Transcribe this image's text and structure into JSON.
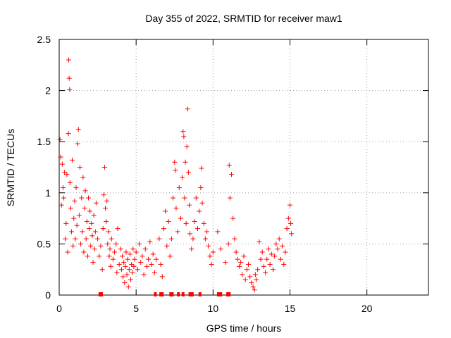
{
  "chart_data": {
    "type": "scatter",
    "title": "Day 355 of 2022, SRMTID for receiver maw1",
    "xlabel": "GPS time / hours",
    "ylabel": "SRMTID / TECUs",
    "xlim": [
      0,
      24
    ],
    "ylim": [
      0,
      2.5
    ],
    "xticks": [
      0,
      5,
      10,
      15,
      20
    ],
    "yticks": [
      0,
      0.5,
      1,
      1.5,
      2,
      2.5
    ],
    "xtick_labels": [
      "0",
      "5",
      "10",
      "15",
      "20"
    ],
    "ytick_labels": [
      "0",
      "0.5",
      "1",
      "1.5",
      "2",
      "2.5"
    ],
    "grid": true,
    "marker": "+",
    "series": [
      {
        "name": "SRMTID",
        "color": "#ff0000",
        "points": [
          [
            0.05,
            1.52
          ],
          [
            0.1,
            1.35
          ],
          [
            0.15,
            0.88
          ],
          [
            0.2,
            1.28
          ],
          [
            0.25,
            1.05
          ],
          [
            0.3,
            0.95
          ],
          [
            0.35,
            1.2
          ],
          [
            0.4,
            0.55
          ],
          [
            0.45,
            0.7
          ],
          [
            0.5,
            1.18
          ],
          [
            0.55,
            0.42
          ],
          [
            0.6,
            1.58
          ],
          [
            0.62,
            2.3
          ],
          [
            0.65,
            2.12
          ],
          [
            0.68,
            2.01
          ],
          [
            0.7,
            1.1
          ],
          [
            0.75,
            0.85
          ],
          [
            0.8,
            0.62
          ],
          [
            0.85,
            1.32
          ],
          [
            0.9,
            0.48
          ],
          [
            0.95,
            0.75
          ],
          [
            1.0,
            0.92
          ],
          [
            1.05,
            0.55
          ],
          [
            1.1,
            1.05
          ],
          [
            1.15,
            0.68
          ],
          [
            1.2,
            1.48
          ],
          [
            1.25,
            1.62
          ],
          [
            1.3,
            0.78
          ],
          [
            1.35,
            1.25
          ],
          [
            1.4,
            0.5
          ],
          [
            1.45,
            0.95
          ],
          [
            1.5,
            0.62
          ],
          [
            1.55,
            1.15
          ],
          [
            1.6,
            0.42
          ],
          [
            1.65,
            0.85
          ],
          [
            1.7,
            1.02
          ],
          [
            1.75,
            0.55
          ],
          [
            1.8,
            0.72
          ],
          [
            1.85,
            0.38
          ],
          [
            1.9,
            0.95
          ],
          [
            1.95,
            0.65
          ],
          [
            2.0,
            0.82
          ],
          [
            2.05,
            0.48
          ],
          [
            2.1,
            0.7
          ],
          [
            2.15,
            0.58
          ],
          [
            2.2,
            0.32
          ],
          [
            2.25,
            0.78
          ],
          [
            2.3,
            0.45
          ],
          [
            2.35,
            0.62
          ],
          [
            2.4,
            0.9
          ],
          [
            2.5,
            0.55
          ],
          [
            2.6,
            0.38
          ],
          [
            2.7,
            0.48
          ],
          [
            2.8,
            0.25
          ],
          [
            2.85,
            0.65
          ],
          [
            2.9,
            0.98
          ],
          [
            2.95,
            1.25
          ],
          [
            3.0,
            0.85
          ],
          [
            3.05,
            0.72
          ],
          [
            3.1,
            0.92
          ],
          [
            3.15,
            0.5
          ],
          [
            3.2,
            0.62
          ],
          [
            3.25,
            0.38
          ],
          [
            3.3,
            0.45
          ],
          [
            3.35,
            0.28
          ],
          [
            3.4,
            0.55
          ],
          [
            3.5,
            0.35
          ],
          [
            3.6,
            0.42
          ],
          [
            3.7,
            0.5
          ],
          [
            3.75,
            0.22
          ],
          [
            3.8,
            0.65
          ],
          [
            3.9,
            0.3
          ],
          [
            4.0,
            0.45
          ],
          [
            4.05,
            0.25
          ],
          [
            4.1,
            0.38
          ],
          [
            4.15,
            0.18
          ],
          [
            4.2,
            0.32
          ],
          [
            4.25,
            0.12
          ],
          [
            4.3,
            0.28
          ],
          [
            4.35,
            0.42
          ],
          [
            4.4,
            0.2
          ],
          [
            4.45,
            0.35
          ],
          [
            4.5,
            0.08
          ],
          [
            4.55,
            0.25
          ],
          [
            4.6,
            0.4
          ],
          [
            4.65,
            0.15
          ],
          [
            4.7,
            0.3
          ],
          [
            4.75,
            0.22
          ],
          [
            4.8,
            0.45
          ],
          [
            4.85,
            0.28
          ],
          [
            4.9,
            0.35
          ],
          [
            5.0,
            0.42
          ],
          [
            5.1,
            0.25
          ],
          [
            5.2,
            0.5
          ],
          [
            5.3,
            0.32
          ],
          [
            5.4,
            0.38
          ],
          [
            5.5,
            0.2
          ],
          [
            5.6,
            0.45
          ],
          [
            5.7,
            0.28
          ],
          [
            5.8,
            0.35
          ],
          [
            5.9,
            0.52
          ],
          [
            6.0,
            0.3
          ],
          [
            6.1,
            0.4
          ],
          [
            6.2,
            0.22
          ],
          [
            6.3,
            0.35
          ],
          [
            6.5,
            0.55
          ],
          [
            6.6,
            0.3
          ],
          [
            6.7,
            0.18
          ],
          [
            6.8,
            0.65
          ],
          [
            6.9,
            0.82
          ],
          [
            7.0,
            0.48
          ],
          [
            7.1,
            0.72
          ],
          [
            7.2,
            0.38
          ],
          [
            7.3,
            0.55
          ],
          [
            7.4,
            0.95
          ],
          [
            7.5,
            1.3
          ],
          [
            7.55,
            1.22
          ],
          [
            7.6,
            0.85
          ],
          [
            7.7,
            0.62
          ],
          [
            7.8,
            1.05
          ],
          [
            7.9,
            0.75
          ],
          [
            8.0,
            1.15
          ],
          [
            8.05,
            1.6
          ],
          [
            8.1,
            1.55
          ],
          [
            8.15,
            0.95
          ],
          [
            8.2,
            1.3
          ],
          [
            8.25,
            0.7
          ],
          [
            8.3,
            1.45
          ],
          [
            8.35,
            1.82
          ],
          [
            8.4,
            1.2
          ],
          [
            8.45,
            0.88
          ],
          [
            8.5,
            0.6
          ],
          [
            8.6,
            0.45
          ],
          [
            8.7,
            0.55
          ],
          [
            8.8,
            0.72
          ],
          [
            8.9,
            0.95
          ],
          [
            9.0,
            0.65
          ],
          [
            9.1,
            0.82
          ],
          [
            9.2,
            1.05
          ],
          [
            9.25,
            1.24
          ],
          [
            9.3,
            0.9
          ],
          [
            9.4,
            0.7
          ],
          [
            9.5,
            0.55
          ],
          [
            9.6,
            0.62
          ],
          [
            9.7,
            0.48
          ],
          [
            9.8,
            0.38
          ],
          [
            9.9,
            0.3
          ],
          [
            10.0,
            0.42
          ],
          [
            10.3,
            0.62
          ],
          [
            10.5,
            0.45
          ],
          [
            10.8,
            0.32
          ],
          [
            11.0,
            0.5
          ],
          [
            11.05,
            1.27
          ],
          [
            11.1,
            0.95
          ],
          [
            11.2,
            1.18
          ],
          [
            11.3,
            0.75
          ],
          [
            11.4,
            0.55
          ],
          [
            11.5,
            0.42
          ],
          [
            11.6,
            0.35
          ],
          [
            11.7,
            0.28
          ],
          [
            11.8,
            0.32
          ],
          [
            11.9,
            0.2
          ],
          [
            12.0,
            0.38
          ],
          [
            12.1,
            0.15
          ],
          [
            12.2,
            0.25
          ],
          [
            12.3,
            0.3
          ],
          [
            12.4,
            0.18
          ],
          [
            12.5,
            0.12
          ],
          [
            12.6,
            0.08
          ],
          [
            12.7,
            0.05
          ],
          [
            12.75,
            0.2
          ],
          [
            12.8,
            0.15
          ],
          [
            12.9,
            0.25
          ],
          [
            13.0,
            0.52
          ],
          [
            13.1,
            0.35
          ],
          [
            13.2,
            0.42
          ],
          [
            13.3,
            0.28
          ],
          [
            13.4,
            0.22
          ],
          [
            13.5,
            0.35
          ],
          [
            13.6,
            0.45
          ],
          [
            13.7,
            0.3
          ],
          [
            13.8,
            0.4
          ],
          [
            13.9,
            0.25
          ],
          [
            14.0,
            0.38
          ],
          [
            14.1,
            0.5
          ],
          [
            14.2,
            0.45
          ],
          [
            14.3,
            0.55
          ],
          [
            14.4,
            0.35
          ],
          [
            14.5,
            0.48
          ],
          [
            14.6,
            0.3
          ],
          [
            14.7,
            0.42
          ],
          [
            14.8,
            0.65
          ],
          [
            14.9,
            0.75
          ],
          [
            15.0,
            0.88
          ],
          [
            15.05,
            0.7
          ],
          [
            15.1,
            0.6
          ]
        ]
      }
    ],
    "gap_marks": {
      "color": "#ff0000",
      "y": 0,
      "x": [
        2.65,
        2.75,
        6.25,
        6.6,
        6.7,
        7.25,
        7.35,
        7.75,
        8.05,
        8.5,
        8.65,
        9.15,
        10.35,
        10.5,
        10.95,
        11.05
      ]
    }
  }
}
